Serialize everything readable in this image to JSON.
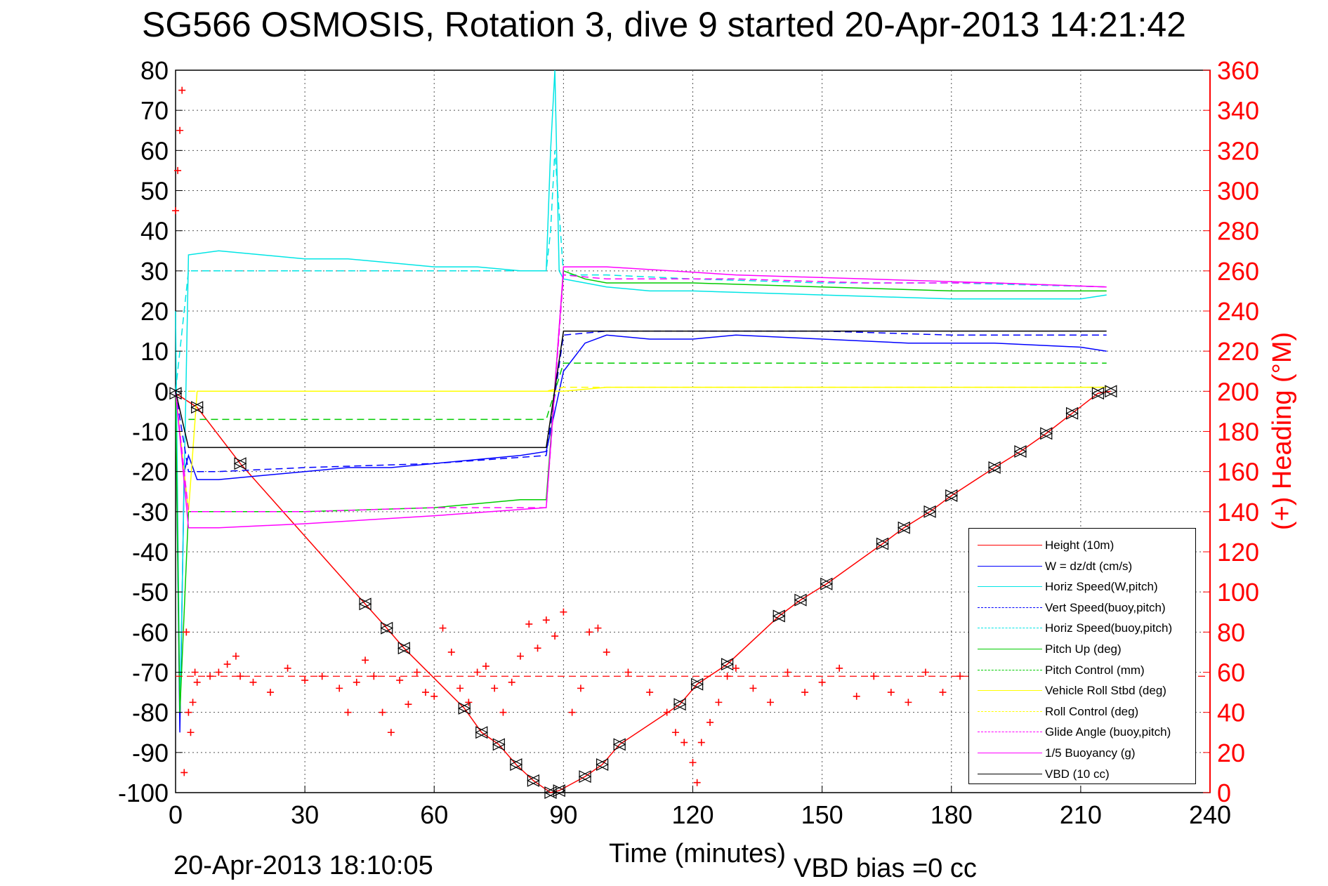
{
  "title": "SG566 OSMOSIS, Rotation 3, dive 9 started 20-Apr-2013 14:21:42",
  "footer": {
    "timestamp": "20-Apr-2013 18:10:05",
    "vbd_bias": "VBD bias =0 cc"
  },
  "chart_data": {
    "type": "line",
    "title": "SG566 OSMOSIS, Rotation 3, dive 9 started 20-Apr-2013 14:21:42",
    "xlabel": "Time (minutes)",
    "ylabel": "",
    "y2label": "(+) Heading (°M)",
    "xlim": [
      0,
      240
    ],
    "ylim": [
      -100,
      80
    ],
    "y2lim": [
      0,
      360
    ],
    "xticks": [
      0,
      30,
      60,
      90,
      120,
      150,
      180,
      210,
      240
    ],
    "yticks": [
      80,
      70,
      60,
      50,
      40,
      30,
      20,
      10,
      0,
      -10,
      -20,
      -30,
      -40,
      -50,
      -60,
      -70,
      -80,
      -90,
      -100
    ],
    "y2ticks": [
      360,
      340,
      320,
      300,
      280,
      260,
      240,
      220,
      200,
      180,
      160,
      140,
      120,
      100,
      80,
      60,
      40,
      20,
      0
    ],
    "grid": true,
    "legend_position": "bottom-right",
    "series": [
      {
        "name": "Height (10m)",
        "color": "#ff0000",
        "style": "solid",
        "x": [
          0,
          5,
          15,
          44,
          49,
          53,
          67,
          71,
          75,
          79,
          83,
          87,
          89,
          95,
          99,
          103,
          117,
          121,
          128,
          140,
          145,
          151,
          164,
          169,
          175,
          180,
          190,
          196,
          202,
          208,
          214,
          217
        ],
        "y": [
          -0.5,
          -4,
          -18,
          -53,
          -59,
          -64,
          -79,
          -85,
          -88,
          -93,
          -97,
          -100,
          -99.5,
          -96,
          -93,
          -88,
          -78,
          -73,
          -68,
          -56,
          -52,
          -48,
          -38,
          -34,
          -30,
          -26,
          -19,
          -15,
          -10.5,
          -5.5,
          -0.5,
          0
        ]
      },
      {
        "name": "W = dz/dt (cm/s)",
        "color": "#0000ff",
        "style": "solid",
        "x": [
          0,
          1,
          2,
          3,
          5,
          10,
          20,
          30,
          40,
          50,
          60,
          70,
          80,
          86,
          88,
          90,
          95,
          100,
          110,
          120,
          130,
          150,
          170,
          190,
          210,
          216
        ],
        "y": [
          0,
          -85,
          -20,
          -16,
          -22,
          -22,
          -21,
          -20,
          -19,
          -19,
          -18,
          -17,
          -16,
          -15,
          -5,
          5,
          12,
          14,
          13,
          13,
          14,
          13,
          12,
          12,
          11,
          10
        ]
      },
      {
        "name": "Horiz Speed(W,pitch)",
        "color": "#00e5e5",
        "style": "solid",
        "x": [
          0,
          1,
          3,
          10,
          20,
          30,
          40,
          50,
          60,
          70,
          80,
          86,
          87,
          88,
          89,
          90,
          95,
          100,
          110,
          120,
          150,
          180,
          210,
          216
        ],
        "y": [
          20,
          -80,
          34,
          35,
          34,
          33,
          33,
          32,
          31,
          31,
          30,
          30,
          60,
          80,
          30,
          28,
          27,
          26,
          25,
          25,
          24,
          23,
          23,
          24
        ]
      },
      {
        "name": "Vert Speed(buoy,pitch)",
        "color": "#0000ff",
        "style": "dashed",
        "x": [
          0,
          3,
          10,
          30,
          60,
          86,
          90,
          100,
          120,
          150,
          180,
          216
        ],
        "y": [
          0,
          -20,
          -20,
          -19,
          -18,
          -16,
          14,
          15,
          15,
          15,
          14,
          14
        ]
      },
      {
        "name": "Horiz Speed(buoy,pitch)",
        "color": "#00e5e5",
        "style": "dashed",
        "x": [
          0,
          3,
          10,
          30,
          60,
          86,
          87,
          88,
          90,
          100,
          120,
          150,
          180,
          216
        ],
        "y": [
          0,
          30,
          30,
          30,
          30,
          30,
          40,
          60,
          29,
          29,
          28,
          27,
          27,
          26
        ]
      },
      {
        "name": "Pitch Up (deg)",
        "color": "#00cc00",
        "style": "solid",
        "x": [
          0,
          1,
          3,
          10,
          30,
          60,
          80,
          86,
          90,
          95,
          100,
          120,
          150,
          180,
          216
        ],
        "y": [
          0,
          -80,
          -30,
          -30,
          -30,
          -29,
          -27,
          -27,
          30,
          28,
          27,
          27,
          26,
          25,
          25
        ]
      },
      {
        "name": "Pitch Control (mm)",
        "color": "#00cc00",
        "style": "dashed",
        "x": [
          3,
          86,
          90,
          100,
          216
        ],
        "y": [
          -7,
          -7,
          7,
          7,
          7
        ]
      },
      {
        "name": "Vehicle Roll Stbd (deg)",
        "color": "#ffff00",
        "style": "solid",
        "x": [
          0,
          3,
          5,
          10,
          30,
          60,
          86,
          90,
          100,
          130,
          160,
          190,
          216
        ],
        "y": [
          0,
          -30,
          0,
          0,
          0,
          0,
          0,
          0,
          1,
          1,
          1,
          1,
          1
        ]
      },
      {
        "name": "Roll Control (deg)",
        "color": "#ffff00",
        "style": "dashed",
        "x": [
          3,
          86,
          90,
          216
        ],
        "y": [
          0,
          0,
          1,
          1
        ]
      },
      {
        "name": "Glide Angle (buoy,pitch)",
        "color": "#ff00ff",
        "style": "dashed",
        "x": [
          0,
          3,
          10,
          30,
          60,
          86,
          90,
          100,
          130,
          160,
          190,
          216
        ],
        "y": [
          0,
          -30,
          -30,
          -30,
          -29,
          -29,
          29,
          28,
          28,
          27,
          27,
          26
        ]
      },
      {
        "name": "1/5 Buoyancy (g)",
        "color": "#ff00ff",
        "style": "solid",
        "x": [
          0,
          3,
          10,
          30,
          60,
          86,
          90,
          100,
          130,
          160,
          190,
          216
        ],
        "y": [
          0,
          -34,
          -34,
          -33,
          -31,
          -29,
          31,
          31,
          29,
          28,
          27,
          26
        ]
      },
      {
        "name": "VBD (10 cc)",
        "color": "#000000",
        "style": "solid",
        "x": [
          0,
          3,
          86,
          90,
          216
        ],
        "y": [
          0,
          -14,
          -14,
          15,
          15
        ]
      }
    ],
    "heading": {
      "axis": "right",
      "marker": "+",
      "color": "#ff0000",
      "target": 58,
      "x": [
        0,
        0.5,
        1,
        1.5,
        2,
        2.5,
        3,
        3.5,
        4,
        4.5,
        5,
        8,
        10,
        12,
        14,
        15,
        18,
        22,
        26,
        30,
        34,
        38,
        40,
        42,
        44,
        46,
        48,
        50,
        52,
        54,
        56,
        58,
        60,
        62,
        64,
        66,
        68,
        70,
        72,
        74,
        76,
        78,
        80,
        82,
        84,
        86,
        88,
        90,
        92,
        94,
        96,
        98,
        100,
        105,
        110,
        114,
        116,
        118,
        120,
        121,
        122,
        124,
        126,
        128,
        130,
        134,
        138,
        142,
        146,
        150,
        154,
        158,
        162,
        166,
        170,
        174,
        178,
        182,
        186,
        190,
        194,
        198,
        202,
        206,
        210,
        214
      ],
      "y": [
        290,
        310,
        330,
        350,
        10,
        80,
        40,
        30,
        45,
        60,
        55,
        58,
        60,
        64,
        68,
        58,
        55,
        50,
        62,
        56,
        58,
        52,
        40,
        55,
        66,
        58,
        40,
        30,
        56,
        44,
        60,
        50,
        48,
        82,
        70,
        52,
        45,
        60,
        63,
        52,
        40,
        55,
        68,
        84,
        72,
        86,
        78,
        90,
        40,
        52,
        80,
        82,
        70,
        60,
        50,
        40,
        30,
        25,
        15,
        5,
        25,
        35,
        45,
        58,
        62,
        52,
        45,
        60,
        50,
        55,
        62,
        48,
        58,
        50,
        45,
        60,
        50,
        58,
        45,
        60,
        55,
        58,
        50,
        60,
        52,
        58
      ]
    }
  }
}
